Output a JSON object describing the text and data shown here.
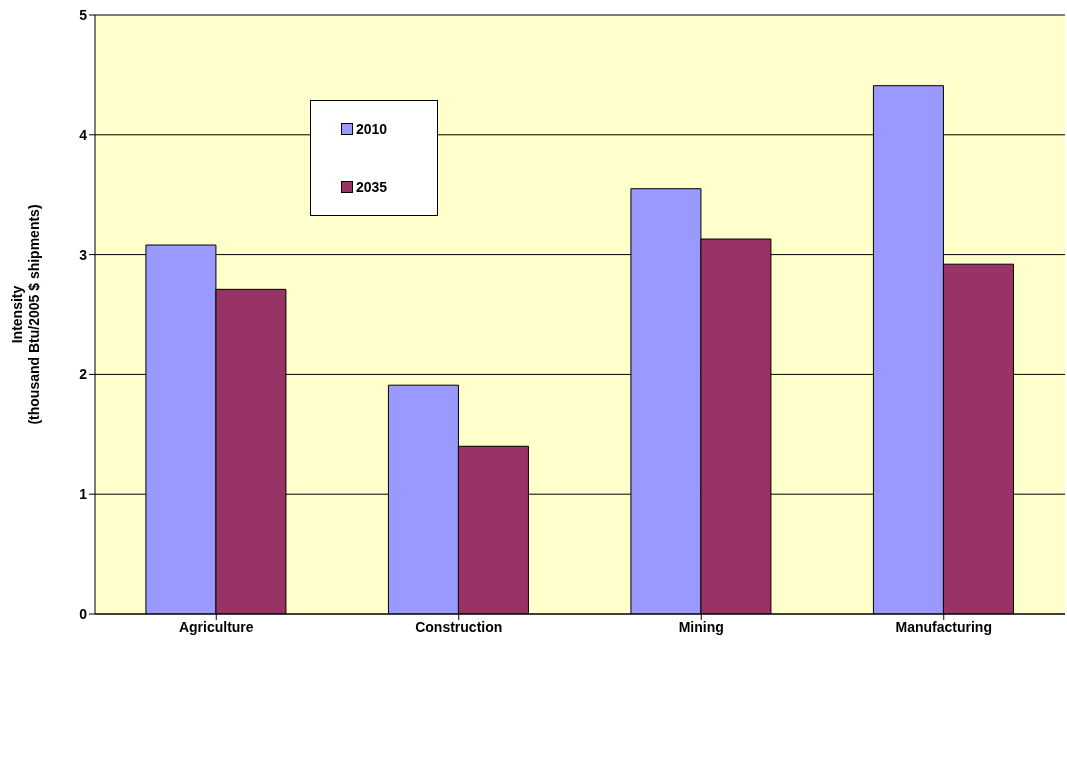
{
  "chart_data": {
    "type": "bar",
    "ylabel": "Intensity\n(thousand Btu/2005 $ shipments)",
    "categories": [
      "Agriculture",
      "Construction",
      "Mining",
      "Manufacturing"
    ],
    "series": [
      {
        "name": "2010",
        "color": "#9999ff",
        "values": [
          3.08,
          1.91,
          3.55,
          4.41
        ]
      },
      {
        "name": "2035",
        "color": "#993366",
        "values": [
          2.71,
          1.4,
          3.13,
          2.92
        ]
      }
    ],
    "ylim": [
      0,
      5
    ],
    "yticks": [
      0,
      1,
      2,
      3,
      4,
      5
    ],
    "grid": "y",
    "legend": "top left"
  }
}
